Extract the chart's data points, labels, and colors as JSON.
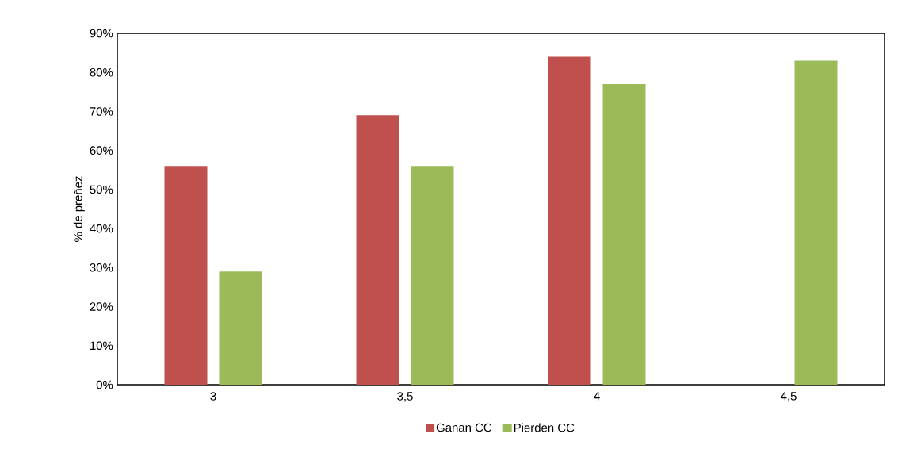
{
  "chart_data": {
    "type": "bar",
    "ylabel": "% de preñez",
    "categories": [
      "3",
      "3,5",
      "4",
      "4,5"
    ],
    "series": [
      {
        "name": "Ganan CC",
        "color": "#c0504d",
        "values": [
          56,
          69,
          84,
          null
        ]
      },
      {
        "name": "Pierden CC",
        "color": "#9bbb59",
        "values": [
          29,
          56,
          77,
          83
        ]
      }
    ],
    "ylim": [
      0,
      90
    ],
    "yticks": [
      {
        "value": 0,
        "label": "0%"
      },
      {
        "value": 10,
        "label": "10%"
      },
      {
        "value": 20,
        "label": "20%"
      },
      {
        "value": 30,
        "label": "30%"
      },
      {
        "value": 40,
        "label": "40%"
      },
      {
        "value": 50,
        "label": "50%"
      },
      {
        "value": 60,
        "label": "60%"
      },
      {
        "value": 70,
        "label": "70%"
      },
      {
        "value": 80,
        "label": "80%"
      },
      {
        "value": 90,
        "label": "90%"
      }
    ],
    "grid": false,
    "legend": "bottom"
  }
}
